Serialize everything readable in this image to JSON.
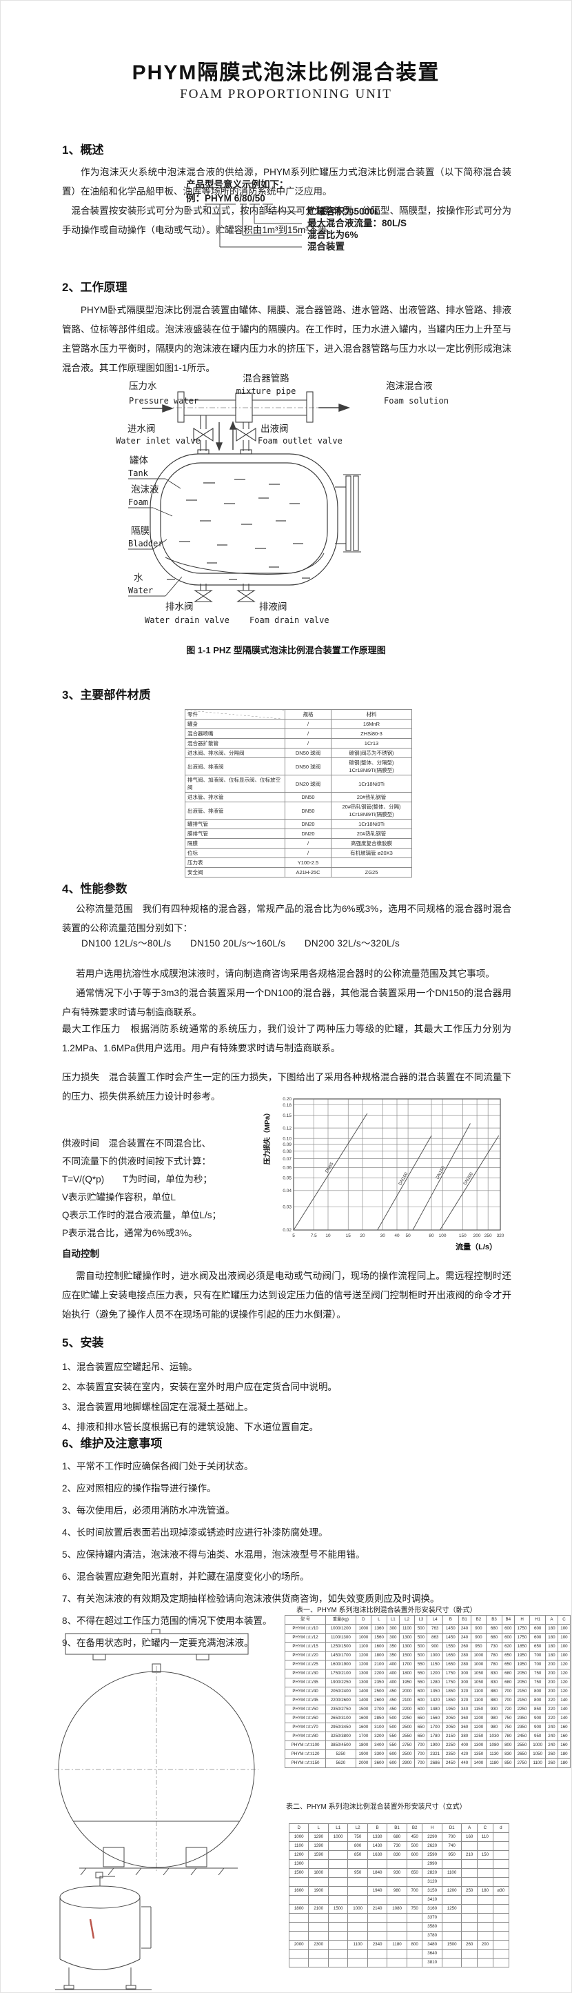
{
  "page": {
    "title": "PHYM隔膜式泡沫比例混合装置",
    "subtitle": "FOAM PROPORTIONING UNIT"
  },
  "sections": {
    "overview": {
      "heading": "1、概述",
      "p1": "作为泡沫灭火系统中泡沫混合液的供给源，PHYM系列贮罐压力式泡沫比例混合装置（以下简称混合装置）在油船和化学品船甲板、油库等场所的消防系统中广泛应用。",
      "p2": "混合装置按安装形式可分为卧式和立式，按内部结构又可分为整体型、分隔型、隔膜型，按操作形式可分为手动操作或自动操作（电动或气动）。贮罐容积由1m³到15m³不等。"
    },
    "model_example": {
      "intro": "产品型号意义示例如下：",
      "example": "例：PHYM 6/80/50",
      "legend": [
        "贮罐容积为5000L",
        "最大混合液流量：80L/S",
        "混合比为6%",
        "混合装置"
      ]
    },
    "principle": {
      "heading": "2、工作原理",
      "p1": "PHYM卧式隔膜型泡沫比例混合装置由罐体、隔膜、混合器管路、进水管路、出液管路、排水管路、排液管路、位标等部件组成。泡沫液盛装在位于罐内的隔膜内。在工作时，压力水进入罐内，当罐内压力上升至与主管路水压力平衡时，隔膜内的泡沫液在罐内压力水的挤压下，进入混合器管路与压力水以一定比例形成泡沫混合液。其工作原理图如图1-1所示。"
    },
    "figure1": {
      "caption": "图 1-1 PHZ 型隔膜式泡沫比例混合装置工作原理图",
      "pressure_water": {
        "cn": "压力水",
        "en": "Pressure water"
      },
      "mixture_pipe": {
        "cn": "混合器管路",
        "en": "mixture pipe"
      },
      "foam_solution": {
        "cn": "泡沫混合液",
        "en": "Foam solution"
      },
      "water_inlet_valve": {
        "cn": "进水阀",
        "en": "Water inlet valve"
      },
      "foam_outlet_valve": {
        "cn": "出液阀",
        "en": "Foam outlet valve"
      },
      "tank": {
        "cn": "罐体",
        "en": "Tank"
      },
      "foam": {
        "cn": "泡沫液",
        "en": "Foam"
      },
      "bladder": {
        "cn": "隔膜",
        "en": "Bladder"
      },
      "water": {
        "cn": "水",
        "en": "Water"
      },
      "water_drain_valve": {
        "cn": "排水阀",
        "en": "Water drain valve"
      },
      "foam_drain_valve": {
        "cn": "排液阀",
        "en": "Foam drain valve"
      }
    },
    "materials": {
      "heading": "3、主要部件材质",
      "table": {
        "headers": [
          "零件",
          "规格",
          "材料"
        ],
        "rows": [
          [
            "罐身",
            "/",
            "16MnR"
          ],
          [
            "混合器喷嘴",
            "/",
            "ZHSi80-3"
          ],
          [
            "混合器扩散管",
            "/",
            "1Cr13"
          ],
          [
            "进水阀、排水阀、分隔阀",
            "DN50 球阀",
            "碳钢(阀芯为不锈钢)"
          ],
          [
            "出液阀、排液阀",
            "DN50 球阀",
            "碳钢(整体、分隔型)\n1Cr18Ni9Ti(隔膜型)"
          ],
          [
            "排气阀、加液阀、位标显示阀、位标放空阀",
            "DN20 球阀",
            "1Cr18Ni9Ti"
          ],
          [
            "进水管、排水管",
            "DN50",
            "20#热轧钢管"
          ],
          [
            "出液管、排液管",
            "DN50",
            "20#热轧钢管(整体、分隔)\n1Cr18Ni9Ti(隔膜型)"
          ],
          [
            "罐排气管",
            "DN20",
            "1Cr18Ni9Ti"
          ],
          [
            "膜排气管",
            "DN20",
            "20#热轧钢管"
          ],
          [
            "隔膜",
            "/",
            "高强度复合橡胶膜"
          ],
          [
            "位标",
            "/",
            "有机玻璃管 ø20X3"
          ],
          [
            "压力表",
            "Y100-2.5",
            ""
          ],
          [
            "安全阀",
            "A21H-25C",
            "ZG25"
          ]
        ]
      }
    },
    "performance": {
      "heading": "4、性能参数",
      "p1": "公称流量范围　我们有四种规格的混合器，常规产品的混合比为6%或3%，选用不同规格的混合器时混合装置的公称流量范围分别如下：",
      "flow_line": "DN100  12L/s～80L/s　　DN150  20L/s～160L/s　　DN200  32L/s～320L/s",
      "p2": "若用户选用抗溶性水成膜泡沫液时，请向制造商咨询采用各规格混合器时的公称流量范围及其它事项。",
      "p3": "通常情况下小于等于3m3的混合装置采用一个DN100的混合器，其他混合装置采用一个DN150的混合器用户有特殊要求时请与制造商联系。",
      "p4": "最大工作压力　根据消防系统通常的系统压力，我们设计了两种压力等级的贮罐，其最大工作压力分别为1.2MPa、1.6MPa供用户选用。用户有特殊要求时请与制造商联系。",
      "p5": "压力损失　混合装置工作时会产生一定的压力损失，下图给出了采用各种规格混合器的混合装置在不同流量下的压力、损失供系统压力设计时参考。",
      "supply_lines": [
        "供液时间　混合装置在不同混合比、",
        "不同流量下的供液时间按下式计算：",
        "T=V/(Q*p)　　T为时间，单位为秒；",
        "V表示贮罐操作容积，单位L",
        "Q表示工作时的混合液流量，单位L/s；",
        "P表示混合比，通常为6%或3%。"
      ],
      "auto_heading": "自动控制",
      "auto_p": "需自动控制贮罐操作时，进水阀及出液阀必须是电动或气动阀门，现场的操作流程同上。需远程控制时还应在贮罐上安装电接点压力表，只有在贮罐压力达到设定压力值的信号送至阀门控制柜时开出液阀的命令才开始执行（避免了操作人员不在现场可能的误操作引起的压力水倒灌）。"
    },
    "install": {
      "heading": "5、安装",
      "items": [
        "1、混合装置应空罐起吊、运输。",
        "2、本装置宜安装在室内，安装在室外时用户应在定货合同中说明。",
        "3、混合装置用地脚螺栓固定在混凝土基础上。",
        "4、排液和排水管长度根据已有的建筑设施、下水道位置自定。"
      ]
    },
    "maintenance": {
      "heading": "6、维护及注意事项",
      "items": [
        "1、平常不工作时应确保各阀门处于关闭状态。",
        "2、应对照相应的操作指导进行操作。",
        "3、每次使用后，必须用消防水冲洗管道。",
        "4、长时间放置后表面若出现掉漆或锈迹时应进行补漆防腐处理。",
        "5、应保持罐内清洁，泡沫液不得与油类、水混用，泡沫液型号不能用错。",
        "6、混合装置应避免阳光直射，并贮藏在温度变化小的场所。",
        "7、有关泡沫液的有效期及定期抽样检验请向泡沫液供货商咨询，如失效变质则应及时调换。",
        "8、不得在超过工作压力范围的情况下使用本装置。",
        "9、在备用状态时，贮罐内一定要充满泡沫液。"
      ]
    },
    "table1": {
      "title": "表一、PHYM 系列泡沫比例混合装置外形安装尺寸（卧式）",
      "headers": [
        "型  号",
        "重量(kg)",
        "D",
        "L",
        "L1",
        "L2",
        "L3",
        "L4",
        "B",
        "B1",
        "B2",
        "B3",
        "B4",
        "H",
        "H1",
        "A",
        "C"
      ],
      "rows": [
        [
          "PHYM □/□/10",
          "1000/1200",
          "1000",
          "1360",
          "300",
          "1100",
          "500",
          "763",
          "1450",
          "240",
          "900",
          "680",
          "600",
          "1750",
          "600",
          "180",
          "100"
        ],
        [
          "PHYM □/□/12",
          "1100/1300",
          "1000",
          "1560",
          "300",
          "1300",
          "500",
          "863",
          "1450",
          "240",
          "900",
          "680",
          "600",
          "1750",
          "600",
          "180",
          "100"
        ],
        [
          "PHYM □/□/15",
          "1250/1500",
          "1100",
          "1600",
          "350",
          "1300",
          "500",
          "900",
          "1550",
          "260",
          "950",
          "730",
          "620",
          "1850",
          "650",
          "180",
          "100"
        ],
        [
          "PHYM □/□/20",
          "1450/1700",
          "1200",
          "1800",
          "350",
          "1500",
          "500",
          "1000",
          "1650",
          "280",
          "1000",
          "780",
          "650",
          "1950",
          "700",
          "180",
          "100"
        ],
        [
          "PHYM □/□/25",
          "1600/1900",
          "1200",
          "2100",
          "400",
          "1700",
          "550",
          "1150",
          "1650",
          "280",
          "1000",
          "780",
          "650",
          "1950",
          "700",
          "200",
          "120"
        ],
        [
          "PHYM □/□/30",
          "1750/2100",
          "1300",
          "2200",
          "400",
          "1800",
          "550",
          "1200",
          "1750",
          "300",
          "1050",
          "830",
          "680",
          "2050",
          "750",
          "200",
          "120"
        ],
        [
          "PHYM □/□/35",
          "1900/2250",
          "1300",
          "2350",
          "400",
          "1950",
          "550",
          "1280",
          "1750",
          "300",
          "1050",
          "830",
          "680",
          "2050",
          "750",
          "200",
          "120"
        ],
        [
          "PHYM □/□/40",
          "2050/2400",
          "1400",
          "2500",
          "450",
          "2000",
          "600",
          "1350",
          "1850",
          "320",
          "1100",
          "880",
          "700",
          "2150",
          "800",
          "200",
          "120"
        ],
        [
          "PHYM □/□/45",
          "2200/2600",
          "1400",
          "2600",
          "450",
          "2100",
          "600",
          "1420",
          "1850",
          "320",
          "1100",
          "880",
          "700",
          "2150",
          "800",
          "220",
          "140"
        ],
        [
          "PHYM □/□/50",
          "2350/2750",
          "1500",
          "2700",
          "450",
          "2200",
          "600",
          "1480",
          "1950",
          "340",
          "1150",
          "930",
          "720",
          "2250",
          "850",
          "220",
          "140"
        ],
        [
          "PHYM □/□/60",
          "2650/3100",
          "1600",
          "2850",
          "500",
          "2250",
          "650",
          "1560",
          "2050",
          "360",
          "1200",
          "980",
          "750",
          "2350",
          "900",
          "220",
          "140"
        ],
        [
          "PHYM □/□/70",
          "2950/3450",
          "1600",
          "3100",
          "500",
          "2500",
          "650",
          "1700",
          "2050",
          "360",
          "1200",
          "980",
          "750",
          "2350",
          "900",
          "240",
          "160"
        ],
        [
          "PHYM □/□/80",
          "3250/3800",
          "1700",
          "3200",
          "550",
          "2550",
          "650",
          "1780",
          "2150",
          "380",
          "1250",
          "1030",
          "780",
          "2450",
          "950",
          "240",
          "160"
        ],
        [
          "PHYM □/□/100",
          "3850/4500",
          "1800",
          "3400",
          "550",
          "2750",
          "700",
          "1900",
          "2250",
          "400",
          "1300",
          "1080",
          "800",
          "2550",
          "1000",
          "240",
          "160"
        ],
        [
          "PHYM □/□/120",
          "5250",
          "1900",
          "3300",
          "600",
          "2500",
          "700",
          "2321",
          "2350",
          "420",
          "1350",
          "1130",
          "830",
          "2650",
          "1050",
          "260",
          "180"
        ],
        [
          "PHYM □/□/150",
          "5620",
          "2000",
          "3600",
          "600",
          "2900",
          "700",
          "2686",
          "2450",
          "440",
          "1400",
          "1180",
          "850",
          "2750",
          "1100",
          "260",
          "180"
        ]
      ]
    },
    "table2": {
      "title": "表二、PHYM 系列泡沫比例混合装置外形安装尺寸（立式）",
      "headers": [
        "D",
        "L",
        "L1",
        "L2",
        "B",
        "B1",
        "B2",
        "H",
        "D1",
        "A",
        "C",
        "d"
      ],
      "rows": [
        [
          "1000",
          "1290",
          "1000",
          "750",
          "1330",
          "680",
          "450",
          "2290",
          "700",
          "160",
          "110",
          ""
        ],
        [
          "1100",
          "1390",
          "",
          "800",
          "1430",
          "730",
          "500",
          "2620",
          "740",
          "",
          "",
          ""
        ],
        [
          "1200",
          "1590",
          "",
          "850",
          "1630",
          "830",
          "600",
          "2590",
          "950",
          "210",
          "150",
          ""
        ],
        [
          "1300",
          "",
          "",
          "",
          "",
          "",
          "",
          "2990",
          "",
          "",
          "",
          ""
        ],
        [
          "1500",
          "1800",
          "",
          "950",
          "1840",
          "930",
          "650",
          "2820",
          "1100",
          "",
          "",
          ""
        ],
        [
          "",
          "",
          "",
          "",
          "",
          "",
          "",
          "3120",
          "",
          "",
          "",
          ""
        ],
        [
          "1600",
          "1900",
          "",
          "",
          "1940",
          "980",
          "700",
          "3150",
          "1200",
          "250",
          "180",
          "ø30"
        ],
        [
          "",
          "",
          "",
          "",
          "",
          "",
          "",
          "3410",
          "",
          "",
          "",
          ""
        ],
        [
          "1800",
          "2100",
          "1500",
          "1000",
          "2140",
          "1080",
          "750",
          "3160",
          "1250",
          "",
          "",
          ""
        ],
        [
          "",
          "",
          "",
          "",
          "",
          "",
          "",
          "3370",
          "",
          "",
          "",
          ""
        ],
        [
          "",
          "",
          "",
          "",
          "",
          "",
          "",
          "3580",
          "",
          "",
          "",
          ""
        ],
        [
          "",
          "",
          "",
          "",
          "",
          "",
          "",
          "3780",
          "",
          "",
          "",
          ""
        ],
        [
          "2000",
          "2300",
          "",
          "1100",
          "2340",
          "1180",
          "800",
          "3480",
          "1500",
          "260",
          "200",
          ""
        ],
        [
          "",
          "",
          "",
          "",
          "",
          "",
          "",
          "3640",
          "",
          "",
          "",
          ""
        ],
        [
          "",
          "",
          "",
          "",
          "",
          "",
          "",
          "3810",
          "",
          "",
          "",
          ""
        ]
      ]
    }
  },
  "chart_data": {
    "type": "line",
    "title": "",
    "xlabel": "流量（L/s）",
    "ylabel": "压力损失（MPa）",
    "x_scale": "log",
    "y_scale": "log",
    "xlim": [
      5,
      320
    ],
    "ylim": [
      0.02,
      0.2
    ],
    "x_ticks": [
      5,
      7.5,
      10,
      15,
      20,
      30,
      40,
      50,
      80,
      100,
      150,
      200,
      250,
      320
    ],
    "y_ticks": [
      0.02,
      0.03,
      0.04,
      0.05,
      0.06,
      0.07,
      0.08,
      0.09,
      0.1,
      0.12,
      0.15,
      0.18,
      0.2
    ],
    "grid": true,
    "legend_position": "labels-on-lines",
    "series": [
      {
        "name": "DN65",
        "points": [
          [
            5,
            0.02
          ],
          [
            22,
            0.155
          ]
        ]
      },
      {
        "name": "DN100",
        "points": [
          [
            27,
            0.02
          ],
          [
            80,
            0.105
          ]
        ]
      },
      {
        "name": "DN150",
        "points": [
          [
            55,
            0.02
          ],
          [
            175,
            0.13
          ]
        ]
      },
      {
        "name": "DN200",
        "points": [
          [
            95,
            0.02
          ],
          [
            310,
            0.105
          ]
        ]
      }
    ]
  }
}
